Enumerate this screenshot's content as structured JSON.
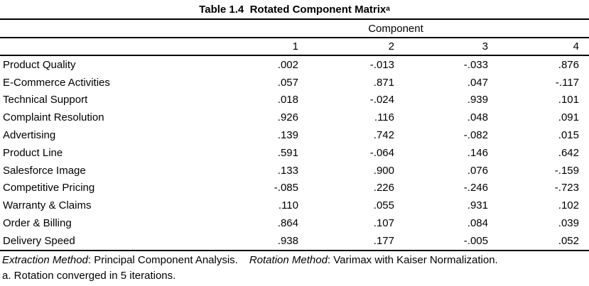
{
  "title": {
    "text": "Table 1.4  Rotated Component Matrix",
    "superscript": "a"
  },
  "table": {
    "spanner": "Component",
    "columns": [
      "1",
      "2",
      "3",
      "4"
    ],
    "rows": [
      {
        "label": "Product Quality",
        "values": [
          ".002",
          "-.013",
          "-.033",
          ".876"
        ]
      },
      {
        "label": "E-Commerce Activities",
        "values": [
          ".057",
          ".871",
          ".047",
          "-.117"
        ]
      },
      {
        "label": "Technical Support",
        "values": [
          ".018",
          "-.024",
          ".939",
          ".101"
        ]
      },
      {
        "label": "Complaint Resolution",
        "values": [
          ".926",
          ".116",
          ".048",
          ".091"
        ]
      },
      {
        "label": "Advertising",
        "values": [
          ".139",
          ".742",
          "-.082",
          ".015"
        ]
      },
      {
        "label": "Product Line",
        "values": [
          ".591",
          "-.064",
          ".146",
          ".642"
        ]
      },
      {
        "label": "Salesforce Image",
        "values": [
          ".133",
          ".900",
          ".076",
          "-.159"
        ]
      },
      {
        "label": "Competitive Pricing",
        "values": [
          "-.085",
          ".226",
          "-.246",
          "-.723"
        ]
      },
      {
        "label": "Warranty & Claims",
        "values": [
          ".110",
          ".055",
          ".931",
          ".102"
        ]
      },
      {
        "label": "Order & Billing",
        "values": [
          ".864",
          ".107",
          ".084",
          ".039"
        ]
      },
      {
        "label": "Delivery Speed",
        "values": [
          ".938",
          ".177",
          "-.005",
          ".052"
        ]
      }
    ]
  },
  "footer": {
    "extraction_label": "Extraction Method",
    "extraction_rest": ": Principal Component Analysis.",
    "rotation_label": "Rotation Method",
    "rotation_rest": ": Varimax with Kaiser Normalization."
  },
  "footnote": "a. Rotation converged in 5 iterations.",
  "colors": {
    "text": "#000000",
    "background": "#ffffff",
    "rule": "#000000"
  },
  "chart_data": {
    "type": "table",
    "title": "Table 1.4 Rotated Component Matrix (a)",
    "column_spanner": "Component",
    "columns": [
      "1",
      "2",
      "3",
      "4"
    ],
    "rows": [
      {
        "label": "Product Quality",
        "values": [
          0.002,
          -0.013,
          -0.033,
          0.876
        ]
      },
      {
        "label": "E-Commerce Activities",
        "values": [
          0.057,
          0.871,
          0.047,
          -0.117
        ]
      },
      {
        "label": "Technical Support",
        "values": [
          0.018,
          -0.024,
          0.939,
          0.101
        ]
      },
      {
        "label": "Complaint Resolution",
        "values": [
          0.926,
          0.116,
          0.048,
          0.091
        ]
      },
      {
        "label": "Advertising",
        "values": [
          0.139,
          0.742,
          -0.082,
          0.015
        ]
      },
      {
        "label": "Product Line",
        "values": [
          0.591,
          -0.064,
          0.146,
          0.642
        ]
      },
      {
        "label": "Salesforce Image",
        "values": [
          0.133,
          0.9,
          0.076,
          -0.159
        ]
      },
      {
        "label": "Competitive Pricing",
        "values": [
          -0.085,
          0.226,
          -0.246,
          -0.723
        ]
      },
      {
        "label": "Warranty & Claims",
        "values": [
          0.11,
          0.055,
          0.931,
          0.102
        ]
      },
      {
        "label": "Order & Billing",
        "values": [
          0.864,
          0.107,
          0.084,
          0.039
        ]
      },
      {
        "label": "Delivery Speed",
        "values": [
          0.938,
          0.177,
          -0.005,
          0.052
        ]
      }
    ],
    "footnotes": [
      "Extraction Method: Principal Component Analysis.",
      "Rotation Method: Varimax with Kaiser Normalization.",
      "a. Rotation converged in 5 iterations."
    ]
  }
}
